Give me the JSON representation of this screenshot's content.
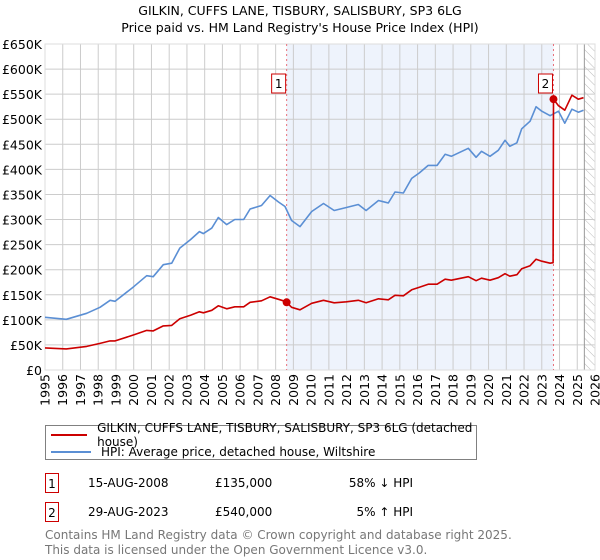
{
  "title": "GILKIN, CUFFS LANE, TISBURY, SALISBURY, SP3 6LG",
  "subtitle": "Price paid vs. HM Land Registry's House Price Index (HPI)",
  "colors": {
    "price": "#cc0000",
    "hpi": "#5b8fd4",
    "shade": "#eef3fc",
    "grid": "#cccccc"
  },
  "chart_data": {
    "type": "line",
    "title": "GILKIN, CUFFS LANE, TISBURY, SALISBURY, SP3 6LG — Price paid vs. HM Land Registry's House Price Index (HPI)",
    "xlim": [
      1995,
      2026
    ],
    "ylim": [
      0,
      650000
    ],
    "xticks": [
      "1995",
      "1996",
      "1997",
      "1998",
      "1999",
      "2000",
      "2001",
      "2002",
      "2003",
      "2004",
      "2005",
      "2006",
      "2007",
      "2008",
      "2009",
      "2010",
      "2011",
      "2012",
      "2013",
      "2014",
      "2015",
      "2016",
      "2017",
      "2018",
      "2019",
      "2020",
      "2021",
      "2022",
      "2023",
      "2024",
      "2025",
      "2026"
    ],
    "yticks": [
      {
        "v": 0,
        "label": "£0"
      },
      {
        "v": 50000,
        "label": "£50K"
      },
      {
        "v": 100000,
        "label": "£100K"
      },
      {
        "v": 150000,
        "label": "£150K"
      },
      {
        "v": 200000,
        "label": "£200K"
      },
      {
        "v": 250000,
        "label": "£250K"
      },
      {
        "v": 300000,
        "label": "£300K"
      },
      {
        "v": 350000,
        "label": "£350K"
      },
      {
        "v": 400000,
        "label": "£400K"
      },
      {
        "v": 450000,
        "label": "£450K"
      },
      {
        "v": 500000,
        "label": "£500K"
      },
      {
        "v": 550000,
        "label": "£550K"
      },
      {
        "v": 600000,
        "label": "£600K"
      },
      {
        "v": 650000,
        "label": "£650K"
      }
    ],
    "grid": true,
    "shaded_period": [
      2008.62,
      2023.66
    ],
    "forecast_hatch_from": 2025.4,
    "series": [
      {
        "name": "GILKIN, CUFFS LANE, TISBURY, SALISBURY, SP3 6LG (detached house)",
        "color": "#cc0000",
        "x": [
          1995.0,
          1996.2,
          1997.35,
          1998.1,
          1998.67,
          1998.95,
          2000.0,
          2000.73,
          2001.1,
          2001.67,
          2002.14,
          2002.6,
          2003.2,
          2003.7,
          2003.93,
          2004.4,
          2004.77,
          2005.24,
          2005.7,
          2006.2,
          2006.56,
          2007.2,
          2007.69,
          2008.16,
          2008.53,
          2008.62,
          2008.9,
          2009.37,
          2010.03,
          2010.7,
          2011.3,
          2011.99,
          2012.66,
          2013.1,
          2013.8,
          2014.35,
          2014.73,
          2015.2,
          2015.67,
          2016.1,
          2016.6,
          2017.1,
          2017.55,
          2017.9,
          2018.86,
          2019.3,
          2019.6,
          2020.08,
          2020.55,
          2020.93,
          2021.2,
          2021.6,
          2021.87,
          2022.34,
          2022.68,
          2023.0,
          2023.47,
          2023.64,
          2023.66,
          2023.94,
          2024.3,
          2024.7,
          2025.06,
          2025.35
        ],
        "y": [
          44000,
          42000,
          47000,
          53000,
          58000,
          58000,
          70000,
          79000,
          78000,
          88000,
          89000,
          102000,
          109000,
          116000,
          114000,
          119000,
          128000,
          122000,
          126000,
          126000,
          135000,
          138000,
          146000,
          141000,
          137000,
          135000,
          125000,
          120000,
          133000,
          139000,
          134000,
          136000,
          139000,
          134000,
          142000,
          140000,
          149000,
          148000,
          160000,
          165000,
          171000,
          171000,
          181000,
          179000,
          186000,
          178000,
          183000,
          179000,
          184000,
          192000,
          187000,
          190000,
          202000,
          208000,
          221000,
          217000,
          213000,
          214000,
          540000,
          527000,
          518000,
          548000,
          540000,
          543000
        ]
      },
      {
        "name": "HPI: Average price, detached house, Wiltshire",
        "color": "#5b8fd4",
        "x": [
          1995.0,
          1996.2,
          1997.35,
          1998.1,
          1998.67,
          1998.95,
          2000.0,
          2000.73,
          2001.1,
          2001.67,
          2002.14,
          2002.6,
          2003.2,
          2003.7,
          2003.93,
          2004.4,
          2004.77,
          2005.24,
          2005.7,
          2006.2,
          2006.56,
          2007.2,
          2007.69,
          2008.16,
          2008.53,
          2008.9,
          2009.37,
          2010.03,
          2010.7,
          2011.3,
          2011.99,
          2012.66,
          2013.1,
          2013.8,
          2014.35,
          2014.73,
          2015.2,
          2015.67,
          2016.1,
          2016.6,
          2017.1,
          2017.55,
          2017.9,
          2018.86,
          2019.3,
          2019.6,
          2020.08,
          2020.55,
          2020.93,
          2021.2,
          2021.6,
          2021.87,
          2022.34,
          2022.68,
          2023.0,
          2023.47,
          2023.94,
          2024.3,
          2024.7,
          2025.06,
          2025.35
        ],
        "y": [
          105000,
          101000,
          113000,
          125000,
          139000,
          137000,
          166000,
          188000,
          186000,
          210000,
          213000,
          243000,
          260000,
          276000,
          272000,
          283000,
          304000,
          290000,
          300000,
          300000,
          321000,
          328000,
          348000,
          335000,
          326000,
          298000,
          286000,
          316000,
          332000,
          318000,
          324000,
          330000,
          318000,
          338000,
          333000,
          355000,
          353000,
          382000,
          393000,
          408000,
          408000,
          430000,
          426000,
          442000,
          424000,
          436000,
          426000,
          438000,
          458000,
          446000,
          453000,
          481000,
          496000,
          525000,
          516000,
          507000,
          516000,
          492000,
          520000,
          514000,
          518000
        ]
      }
    ],
    "sales": [
      {
        "label": "1",
        "x": 2008.62,
        "y": 135000
      },
      {
        "label": "2",
        "x": 2023.66,
        "y": 540000
      }
    ]
  },
  "legend": {
    "price_label": "GILKIN, CUFFS LANE, TISBURY, SALISBURY, SP3 6LG (detached house)",
    "hpi_label": "HPI: Average price, detached house, Wiltshire"
  },
  "transactions": [
    {
      "num": "1",
      "date": "15-AUG-2008",
      "price": "£135,000",
      "hpi": "58% ↓ HPI"
    },
    {
      "num": "2",
      "date": "29-AUG-2023",
      "price": "£540,000",
      "hpi": "5% ↑ HPI"
    }
  ],
  "footer": {
    "line1": "Contains HM Land Registry data © Crown copyright and database right 2025.",
    "line2": "This data is licensed under the Open Government Licence v3.0."
  }
}
